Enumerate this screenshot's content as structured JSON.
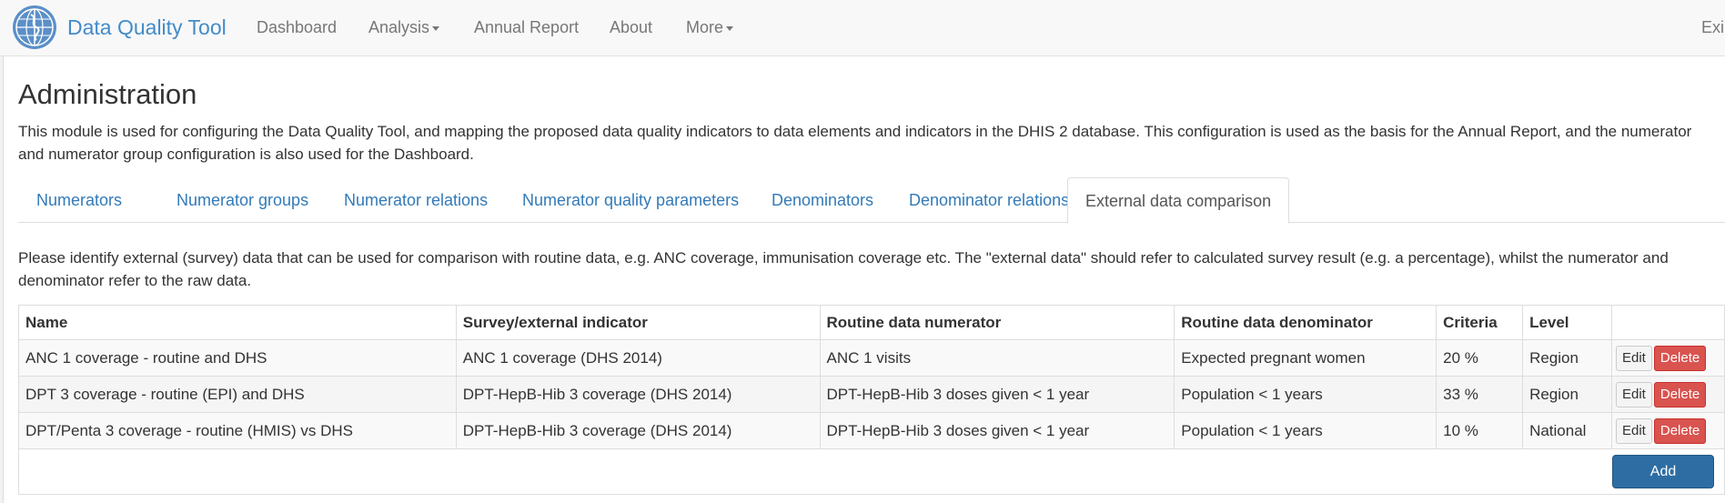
{
  "navbar": {
    "brand": "Data Quality Tool",
    "logo_icon": "who-emblem-icon",
    "items": [
      {
        "label": "Dashboard",
        "dropdown": false
      },
      {
        "label": "Analysis",
        "dropdown": true
      },
      {
        "label": "Annual Report",
        "dropdown": false
      },
      {
        "label": "About",
        "dropdown": false
      },
      {
        "label": "More",
        "dropdown": true
      }
    ],
    "exit_label": "Exi"
  },
  "page": {
    "title": "Administration",
    "intro": "This module is used for configuring the Data Quality Tool, and mapping the proposed data quality indicators to data elements and indicators in the DHIS 2 database. This configuration is used as the basis for the Annual Report, and the numerator and numerator group configuration is also used for the Dashboard."
  },
  "tabs": [
    {
      "label": "Numerators",
      "active": false
    },
    {
      "label": "Numerator groups",
      "active": false
    },
    {
      "label": "Numerator relations",
      "active": false
    },
    {
      "label": "Numerator quality parameters",
      "active": false
    },
    {
      "label": "Denominators",
      "active": false
    },
    {
      "label": "Denominator relations",
      "active": false
    },
    {
      "label": "External data comparison",
      "active": true
    }
  ],
  "help_text": "Please identify external (survey) data that can be used for comparison with routine data, e.g. ANC coverage, immunisation coverage etc. The \"external data\" should refer to calculated survey result (e.g. a percentage), whilst the numerator and denominator refer to the raw data.",
  "table": {
    "headers": [
      "Name",
      "Survey/external indicator",
      "Routine data numerator",
      "Routine data denominator",
      "Criteria",
      "Level",
      ""
    ],
    "rows": [
      {
        "name": "ANC 1 coverage - routine and DHS",
        "survey": "ANC 1 coverage (DHS 2014)",
        "numerator": "ANC 1 visits",
        "denominator": "Expected pregnant women",
        "criteria": "20 %",
        "level": "Region"
      },
      {
        "name": "DPT 3 coverage - routine (EPI) and DHS",
        "survey": "DPT-HepB-Hib 3 coverage (DHS 2014)",
        "numerator": "DPT-HepB-Hib 3 doses given < 1 year",
        "denominator": "Population < 1 years",
        "criteria": "33 %",
        "level": "Region"
      },
      {
        "name": "DPT/Penta 3 coverage - routine (HMIS) vs DHS",
        "survey": "DPT-HepB-Hib 3 coverage (DHS 2014)",
        "numerator": "DPT-HepB-Hib 3 doses given < 1 year",
        "denominator": "Population < 1 years",
        "criteria": "10 %",
        "level": "National"
      }
    ],
    "edit_label": "Edit",
    "delete_label": "Delete"
  },
  "add_label": "Add",
  "colors": {
    "link": "#337ab7",
    "brand": "#428bca",
    "danger": "#d9534f",
    "primary": "#2e6da4"
  }
}
